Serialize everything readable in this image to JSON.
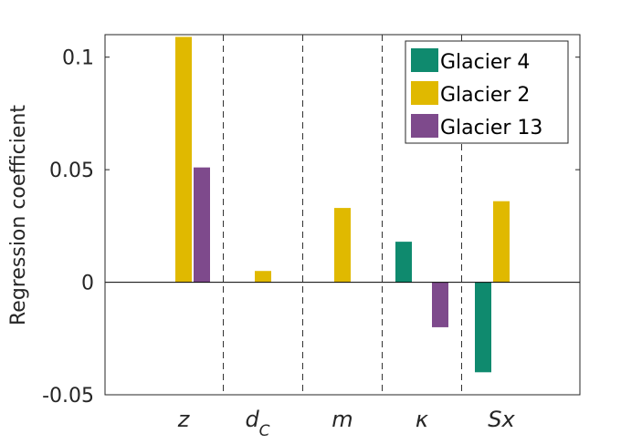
{
  "chart_data": {
    "type": "bar",
    "title": "",
    "xlabel": "",
    "ylabel": "Regression coefficient",
    "categories": [
      {
        "main": "z",
        "sub": ""
      },
      {
        "main": "d",
        "sub": "C"
      },
      {
        "main": "m",
        "sub": ""
      },
      {
        "main": "κ",
        "sub": ""
      },
      {
        "main": "Sx",
        "sub": ""
      }
    ],
    "series": [
      {
        "name": "Glacier 4",
        "color": "#0f8a6e",
        "values": [
          0,
          0,
          0,
          0.018,
          -0.04
        ]
      },
      {
        "name": "Glacier 2",
        "color": "#e0b900",
        "values": [
          0.109,
          0.005,
          0.033,
          0,
          0.036
        ]
      },
      {
        "name": "Glacier 13",
        "color": "#7e4a8c",
        "values": [
          0.051,
          0,
          0,
          -0.02,
          0
        ]
      }
    ],
    "ylim": [
      -0.05,
      0.11
    ],
    "yticks": [
      -0.05,
      0,
      0.05,
      0.1
    ],
    "ytick_labels": [
      "-0.05",
      "0",
      "0.05",
      "0.1"
    ],
    "category_separators": "dashed",
    "zero_line": true,
    "grid": false,
    "legend_position": "top-right"
  }
}
